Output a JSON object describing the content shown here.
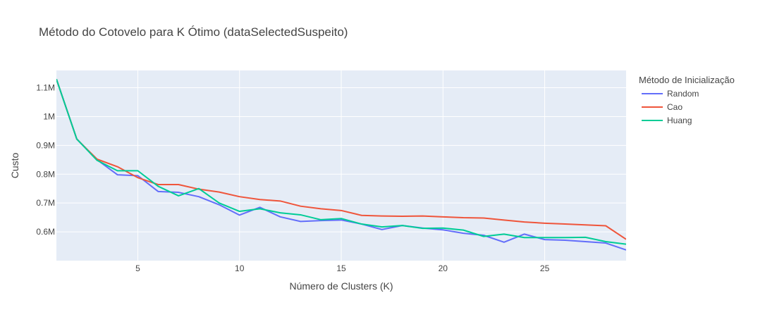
{
  "chart_data": {
    "type": "line",
    "title": "Método do Cotovelo para K Ótimo (dataSelectedSuspeito)",
    "xlabel": "Número de Clusters (K)",
    "ylabel": "Custo",
    "xlim": [
      1,
      29
    ],
    "ylim": [
      500000,
      1160000
    ],
    "grid": true,
    "legend_placement": "right",
    "legend_title": "Método de Inicialização",
    "x_ticks": [
      5,
      10,
      15,
      20,
      25
    ],
    "x_tick_labels": [
      "5",
      "10",
      "15",
      "20",
      "25"
    ],
    "y_ticks": [
      600000,
      700000,
      800000,
      900000,
      1000000,
      1100000
    ],
    "y_tick_labels": [
      "0.6M",
      "0.7M",
      "0.8M",
      "0.9M",
      "1M",
      "1.1M"
    ],
    "x": [
      1,
      2,
      3,
      4,
      5,
      6,
      7,
      8,
      9,
      10,
      11,
      12,
      13,
      14,
      15,
      16,
      17,
      18,
      19,
      20,
      21,
      22,
      23,
      24,
      25,
      26,
      27,
      28,
      29
    ],
    "series": [
      {
        "name": "Random",
        "color": "#636efa",
        "values": [
          1130000,
          922000,
          850000,
          798000,
          795000,
          740000,
          737000,
          722000,
          694000,
          658000,
          685000,
          652000,
          636000,
          639000,
          641000,
          627000,
          608000,
          622000,
          613000,
          607000,
          595000,
          588000,
          564000,
          592000,
          573000,
          571000,
          566000,
          561000,
          537000
        ]
      },
      {
        "name": "Cao",
        "color": "#ef553b",
        "values": [
          1130000,
          922000,
          852000,
          826000,
          788000,
          764000,
          764000,
          748000,
          738000,
          722000,
          712000,
          707000,
          689000,
          680000,
          674000,
          657000,
          655000,
          654000,
          655000,
          652000,
          649000,
          648000,
          641000,
          634000,
          630000,
          627000,
          624000,
          621000,
          574000
        ]
      },
      {
        "name": "Huang",
        "color": "#00cc96",
        "values": [
          1130000,
          922000,
          848000,
          812000,
          812000,
          758000,
          725000,
          750000,
          700000,
          671000,
          680000,
          666000,
          659000,
          642000,
          646000,
          627000,
          617000,
          622000,
          612000,
          613000,
          606000,
          584000,
          592000,
          580000,
          580000,
          580000,
          581000,
          566000,
          557000
        ]
      }
    ]
  },
  "colors": {
    "plot_background": "#e5ecf6",
    "gridline": "#ffffff",
    "text": "#444444"
  }
}
